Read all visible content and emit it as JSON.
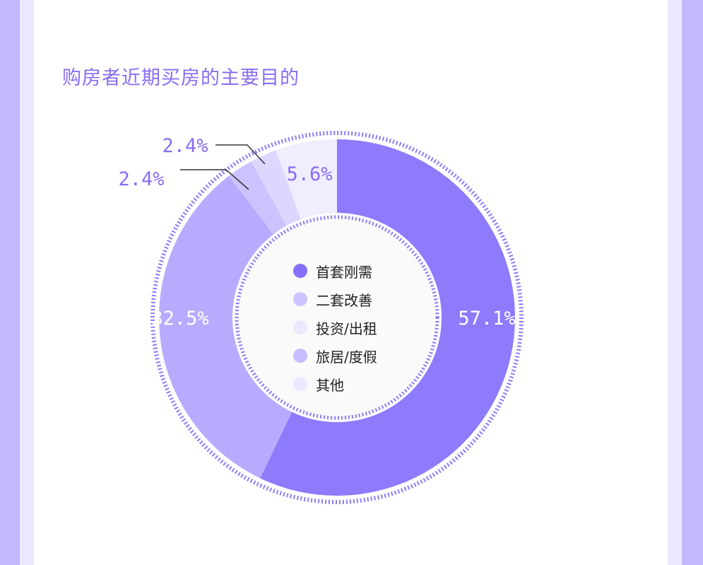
{
  "title": "购房者近期买房的主要目的",
  "colors": {
    "accent": "#8a6cf2",
    "page_stripe": "#c4b8fc",
    "page_stripe_light": "#ece8ff"
  },
  "chart_data": {
    "type": "pie",
    "donut": true,
    "title": "购房者近期买房的主要目的",
    "legend_placement": "center",
    "slices": [
      {
        "label": "首套刚需",
        "value": 57.1,
        "display": "57.1%",
        "color": "#8d7bfc"
      },
      {
        "label": "二套改善",
        "value": 32.5,
        "display": "32.5%",
        "color": "#b8abff"
      },
      {
        "label": "旅居/度假",
        "value": 2.4,
        "display": "2.4%",
        "color": "#cbc2ff"
      },
      {
        "label": "投资/出租",
        "value": 2.4,
        "display": "2.4%",
        "color": "#ddd7ff"
      },
      {
        "label": "其他",
        "value": 5.6,
        "display": "5.6%",
        "color": "#f0edff"
      }
    ],
    "legend": [
      {
        "label": "首套刚需",
        "color": "#8570fa"
      },
      {
        "label": "二套改善",
        "color": "#cdc4ff"
      },
      {
        "label": "投资/出租",
        "color": "#ebe8ff"
      },
      {
        "label": "旅居/度假",
        "color": "#c6bcff"
      },
      {
        "label": "其他",
        "color": "#ebe8ff"
      }
    ]
  }
}
